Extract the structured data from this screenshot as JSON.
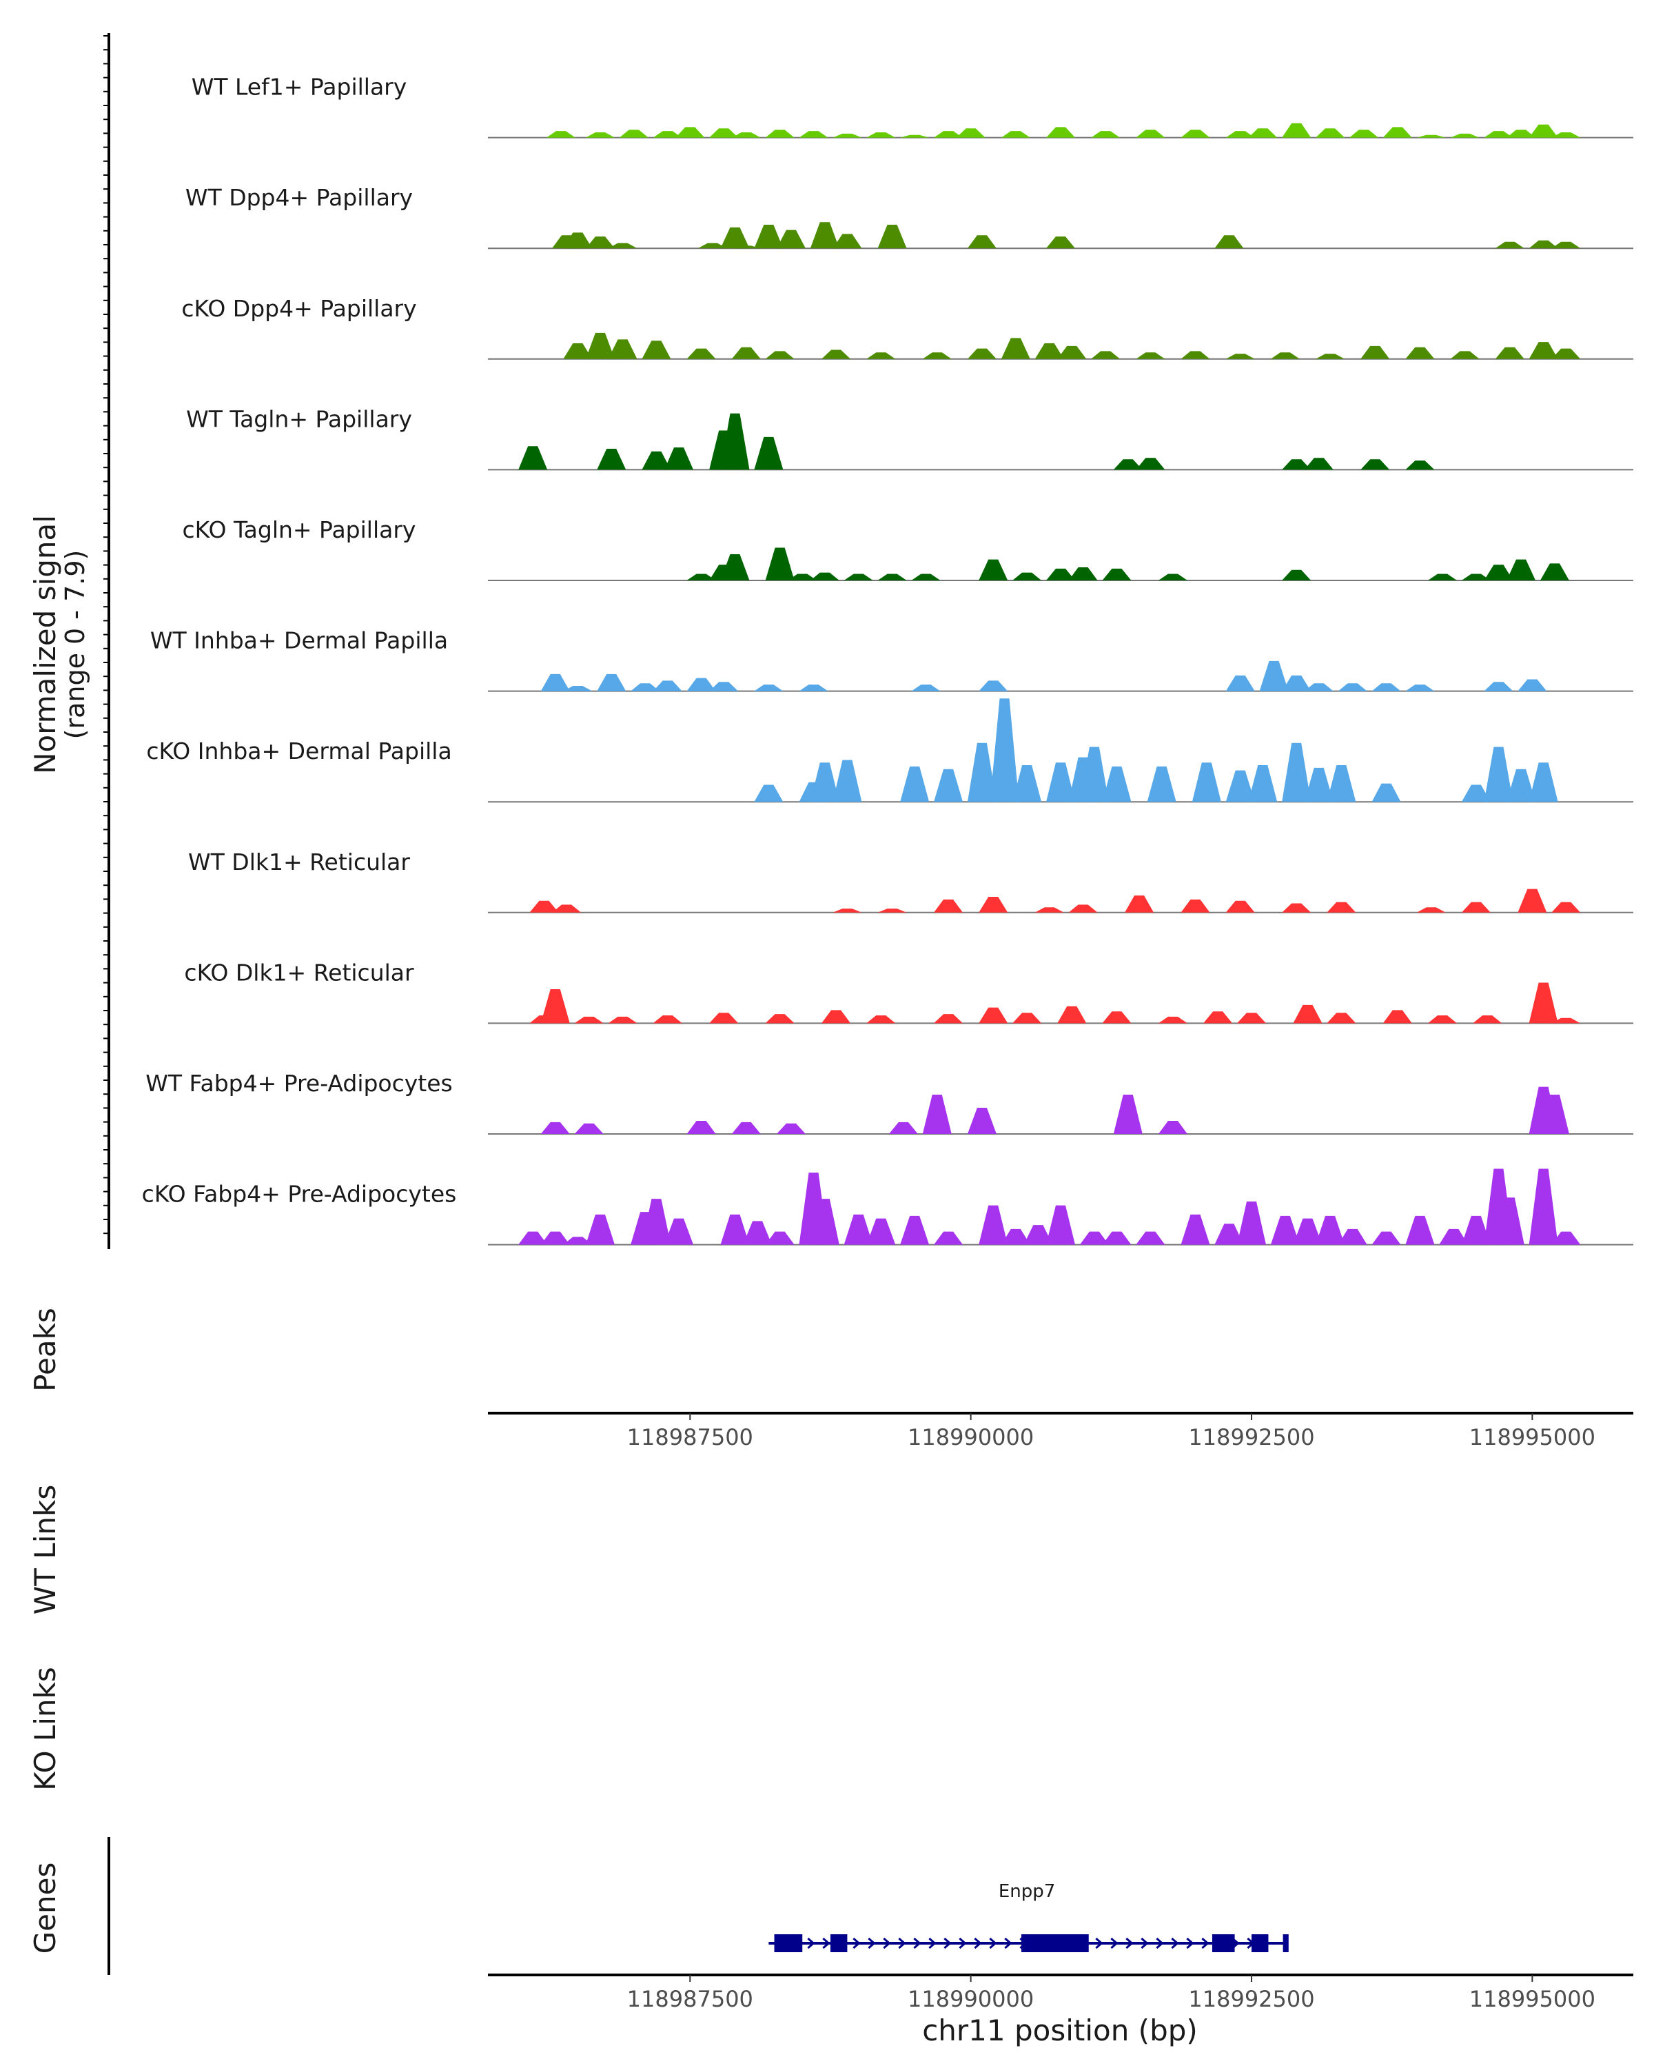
{
  "chart_data": {
    "type": "area",
    "title": "",
    "chromosome": "chr11",
    "xlabel": "chr11 position (bp)",
    "ylabel": "Normalized signal",
    "ylabel_range": "(range 0 - 7.9)",
    "ylim": [
      0,
      7.9
    ],
    "xlim": [
      118985700,
      118995900
    ],
    "x_ticks": [
      118987500,
      118990000,
      118992500,
      118995000
    ],
    "x_tick_labels": [
      "118987500",
      "118990000",
      "118992500",
      "118995000"
    ],
    "series": [
      {
        "name": "WT Lef1+ Papillary",
        "color": "#66cc00",
        "x": [
          118986200,
          118986350,
          118986500,
          118986700,
          118986900,
          118987000,
          118987300,
          118987500,
          118987800,
          118988000,
          118988300,
          118988600,
          118988900,
          118989200,
          118989500,
          118989800,
          118990000,
          118990400,
          118990800,
          118991200,
          118991600,
          118992000,
          118992400,
          118992600,
          118992900,
          118993200,
          118993500,
          118993800,
          118994100,
          118994400,
          118994700,
          118994900,
          118995100,
          118995300
        ],
        "values": [
          0,
          0.5,
          0,
          0.4,
          0,
          0.6,
          0.5,
          0.8,
          0.7,
          0.4,
          0.6,
          0.5,
          0.3,
          0.4,
          0.2,
          0.5,
          0.7,
          0.5,
          0.8,
          0.5,
          0.6,
          0.6,
          0.5,
          0.7,
          1.1,
          0.7,
          0.6,
          0.8,
          0.2,
          0.3,
          0.5,
          0.6,
          1.0,
          0.4
        ]
      },
      {
        "name": "WT Dpp4+ Papillary",
        "color": "#4d8c00",
        "x": [
          118986200,
          118986400,
          118986500,
          118986700,
          118986900,
          118987700,
          118987900,
          118988000,
          118988200,
          118988400,
          118988700,
          118988900,
          118989300,
          118989500,
          118990100,
          118990800,
          118992300,
          118994800,
          118995100,
          118995300
        ],
        "values": [
          0,
          1.0,
          1.2,
          0.9,
          0.4,
          0.4,
          1.6,
          0.2,
          1.8,
          1.4,
          2.0,
          1.1,
          1.8,
          0,
          1.0,
          0.9,
          1.0,
          0.5,
          0.6,
          0.5
        ]
      },
      {
        "name": "cKO Dpp4+ Papillary",
        "color": "#4d8c00",
        "x": [
          118986200,
          118986500,
          118986700,
          118986900,
          118987200,
          118987600,
          118988000,
          118988300,
          118988800,
          118989200,
          118989700,
          118990100,
          118990400,
          118990700,
          118990900,
          118991200,
          118991600,
          118992000,
          118992400,
          118992800,
          118993200,
          118993600,
          118994000,
          118994400,
          118994800,
          118995100,
          118995300
        ],
        "values": [
          0,
          1.2,
          2.0,
          1.5,
          1.4,
          0.8,
          0.9,
          0.6,
          0.7,
          0.5,
          0.5,
          0.8,
          1.6,
          1.2,
          1.0,
          0.6,
          0.5,
          0.6,
          0.4,
          0.5,
          0.4,
          1.0,
          0.9,
          0.6,
          0.9,
          1.3,
          0.8
        ]
      },
      {
        "name": "WT Tagln+ Papillary",
        "color": "#006400",
        "x": [
          118986100,
          118986800,
          118987200,
          118987400,
          118987800,
          118987900,
          118988200,
          118991400,
          118991600,
          118992900,
          118993100,
          118993600,
          118994000
        ],
        "values": [
          1.8,
          1.6,
          1.4,
          1.7,
          3.0,
          4.3,
          2.5,
          0.8,
          0.9,
          0.8,
          0.9,
          0.8,
          0.7
        ]
      },
      {
        "name": "cKO Tagln+ Papillary",
        "color": "#006400",
        "x": [
          118987600,
          118987800,
          118987900,
          118988300,
          118988500,
          118988700,
          118989000,
          118989300,
          118989600,
          118990200,
          118990500,
          118990800,
          118991000,
          118991300,
          118991800,
          118992900,
          118994200,
          118994500,
          118994700,
          118994900,
          118995200
        ],
        "values": [
          0.5,
          1.2,
          2.0,
          2.5,
          0.5,
          0.6,
          0.5,
          0.5,
          0.5,
          1.6,
          0.6,
          0.9,
          1.0,
          0.9,
          0.5,
          0.8,
          0.5,
          0.5,
          1.2,
          1.6,
          1.3
        ]
      },
      {
        "name": "WT Inhba+ Dermal Papilla",
        "color": "#56a8e8",
        "x": [
          118986300,
          118986500,
          118986800,
          118987100,
          118987300,
          118987600,
          118987800,
          118988200,
          118988600,
          118989600,
          118990200,
          118992400,
          118992700,
          118992900,
          118993100,
          118993400,
          118993700,
          118994000,
          118994700,
          118995000
        ],
        "values": [
          1.3,
          0.4,
          1.3,
          0.6,
          0.8,
          1.0,
          0.7,
          0.5,
          0.5,
          0.5,
          0.8,
          1.2,
          2.3,
          1.2,
          0.6,
          0.6,
          0.6,
          0.5,
          0.7,
          0.9
        ]
      },
      {
        "name": "cKO Inhba+ Dermal Papilla",
        "color": "#56a8e8",
        "x": [
          118988200,
          118988600,
          118988700,
          118988900,
          118989500,
          118989800,
          118990100,
          118990300,
          118990500,
          118990800,
          118991000,
          118991100,
          118991300,
          118991700,
          118992100,
          118992400,
          118992600,
          118992900,
          118993100,
          118993300,
          118993700,
          118994500,
          118994700,
          118994900,
          118995100
        ],
        "values": [
          1.3,
          1.5,
          3.0,
          3.2,
          2.7,
          2.5,
          4.5,
          7.9,
          2.8,
          3.0,
          3.4,
          4.2,
          2.7,
          2.7,
          3.0,
          2.4,
          2.8,
          4.5,
          2.6,
          2.8,
          1.4,
          1.3,
          4.2,
          2.5,
          3.0
        ]
      },
      {
        "name": "WT Dlk1+ Reticular",
        "color": "#ff3333",
        "x": [
          118986200,
          118986400,
          118988900,
          118989300,
          118989800,
          118990200,
          118990700,
          118991000,
          118991500,
          118992000,
          118992400,
          118992900,
          118993300,
          118994100,
          118994500,
          118995000,
          118995300
        ],
        "values": [
          0.9,
          0.6,
          0.3,
          0.3,
          1.0,
          1.2,
          0.4,
          0.6,
          1.3,
          1.0,
          0.9,
          0.7,
          0.8,
          0.4,
          0.8,
          1.8,
          0.8
        ]
      },
      {
        "name": "cKO Dlk1+ Reticular",
        "color": "#ff3333",
        "x": [
          118986200,
          118986300,
          118986600,
          118986900,
          118987300,
          118987800,
          118988300,
          118988800,
          118989200,
          118989800,
          118990200,
          118990500,
          118990900,
          118991300,
          118991800,
          118992200,
          118992500,
          118993000,
          118993300,
          118993800,
          118994200,
          118994600,
          118995100,
          118995300
        ],
        "values": [
          0.6,
          2.6,
          0.5,
          0.5,
          0.6,
          0.8,
          0.7,
          1.0,
          0.6,
          0.7,
          1.2,
          0.8,
          1.3,
          0.9,
          0.5,
          0.9,
          0.8,
          1.4,
          0.8,
          1.0,
          0.6,
          0.6,
          3.1,
          0.4
        ]
      },
      {
        "name": "WT Fabp4+ Pre-Adipocytes",
        "color": "#a633ee",
        "x": [
          118986300,
          118986600,
          118987600,
          118988000,
          118988400,
          118989400,
          118989700,
          118990100,
          118991400,
          118991800,
          118995100,
          118995200
        ],
        "values": [
          0.9,
          0.8,
          1.0,
          0.9,
          0.8,
          0.9,
          3.0,
          2.0,
          3.0,
          1.0,
          3.6,
          3.0
        ]
      },
      {
        "name": "cKO Fabp4+ Pre-Adipocytes",
        "color": "#a633ee",
        "x": [
          118986100,
          118986300,
          118986500,
          118986700,
          118987100,
          118987200,
          118987400,
          118987900,
          118988100,
          118988300,
          118988600,
          118988700,
          118989000,
          118989200,
          118989500,
          118989800,
          118990200,
          118990400,
          118990600,
          118990800,
          118991100,
          118991300,
          118991600,
          118992000,
          118992300,
          118992500,
          118992800,
          118993000,
          118993200,
          118993400,
          118993700,
          118994000,
          118994300,
          118994500,
          118994700,
          118994800,
          118995100,
          118995300
        ],
        "values": [
          1.0,
          1.0,
          0.6,
          2.3,
          2.5,
          3.5,
          2.0,
          2.3,
          1.8,
          1.0,
          5.5,
          3.5,
          2.3,
          2.0,
          2.2,
          1.0,
          3.0,
          1.2,
          1.5,
          3.0,
          1.0,
          1.0,
          1.0,
          2.3,
          1.6,
          3.3,
          2.2,
          2.0,
          2.2,
          1.2,
          1.0,
          2.2,
          1.2,
          2.2,
          5.8,
          3.6,
          5.8,
          1.0
        ]
      }
    ],
    "panels": {
      "peaks_label": "Peaks",
      "wt_links_label": "WT Links",
      "ko_links_label": "KO Links",
      "genes_label": "Genes"
    },
    "gene": {
      "name": "Enpp7",
      "start": 118988200,
      "end": 118992800,
      "strand": "+",
      "exons": [
        [
          118988250,
          118988500
        ],
        [
          118988750,
          118988900
        ],
        [
          118990450,
          118991050
        ],
        [
          118992150,
          118992350
        ],
        [
          118992500,
          118992650
        ],
        [
          118992780,
          118992830
        ]
      ]
    }
  }
}
